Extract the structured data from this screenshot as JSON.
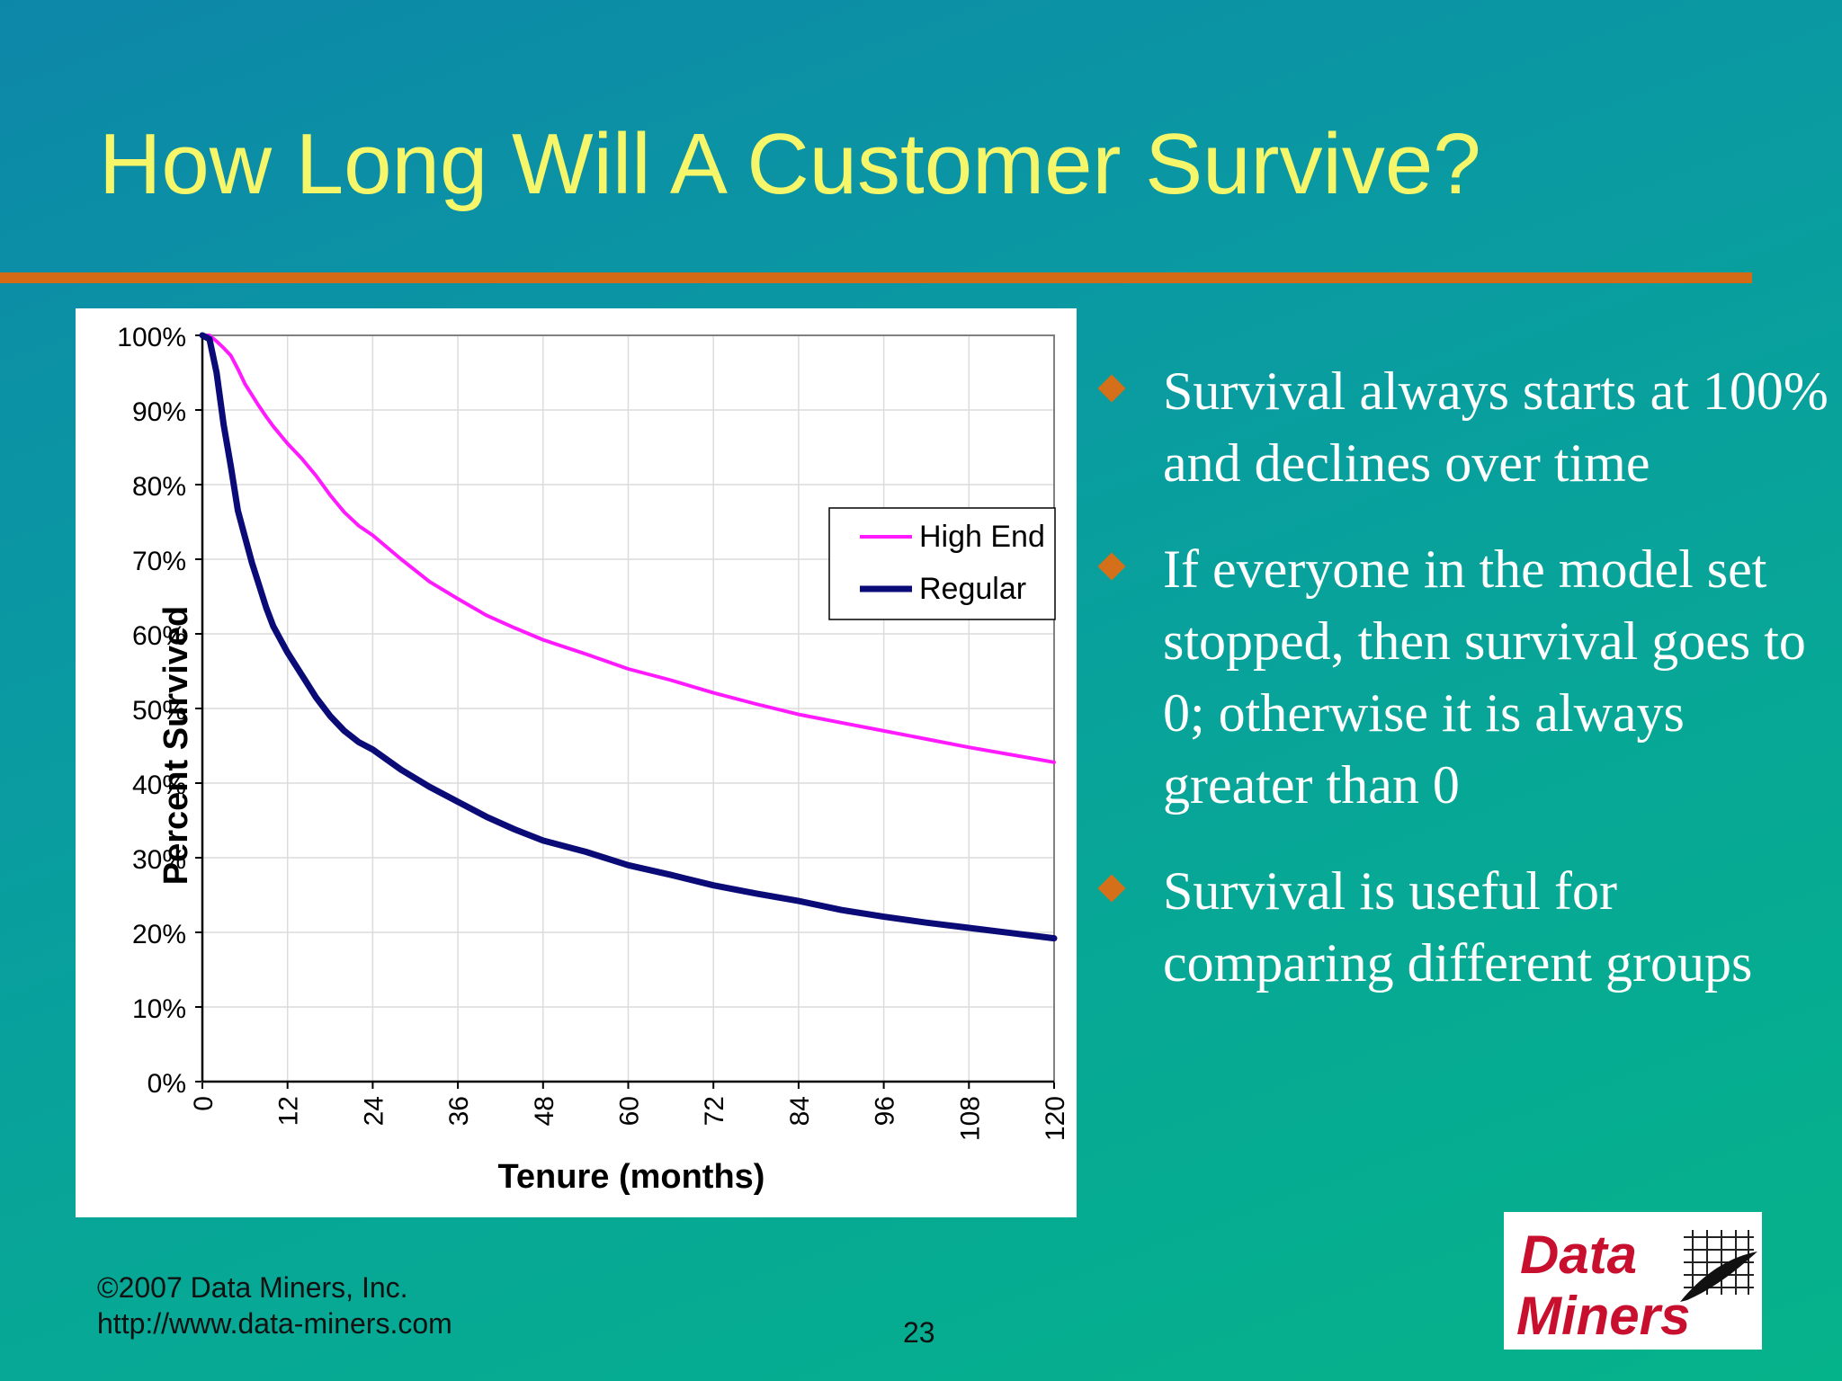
{
  "slide": {
    "title": "How Long Will A Customer Survive?",
    "bullets": [
      "Survival always starts at 100% and declines over time",
      "If everyone in the model set stopped, then survival goes to 0; otherwise it is always greater than 0",
      "Survival is useful for comparing different groups"
    ],
    "footer_line1": "©2007 Data Miners, Inc.",
    "footer_line2": "http://www.data-miners.com",
    "page_number": "23",
    "logo": {
      "word1": "Data",
      "word2": "Miners"
    }
  },
  "colors": {
    "title": "#f6f66a",
    "rule": "#d46a16",
    "bullet_marker": "#d4701a",
    "high_end": "#ff1aff",
    "regular": "#0b0b78",
    "logo_text": "#c8102e"
  },
  "icons": {
    "bullet": "orange-diamond-icon",
    "logo": "quill-pen-grid-icon"
  },
  "chart_data": {
    "type": "line",
    "xlabel": "Tenure (months)",
    "ylabel": "Percent Survived",
    "xlim": [
      0,
      120
    ],
    "ylim": [
      0,
      100
    ],
    "x_ticks": [
      "0",
      "12",
      "24",
      "36",
      "48",
      "60",
      "72",
      "84",
      "96",
      "108",
      "120"
    ],
    "y_ticks": [
      "0%",
      "10%",
      "20%",
      "30%",
      "40%",
      "50%",
      "60%",
      "70%",
      "80%",
      "90%",
      "100%"
    ],
    "grid": true,
    "legend_position": "right",
    "series": [
      {
        "name": "High End",
        "x": [
          0,
          1,
          2,
          3,
          4,
          5,
          6,
          7,
          8,
          9,
          10,
          12,
          14,
          16,
          18,
          20,
          22,
          24,
          28,
          32,
          36,
          40,
          44,
          48,
          54,
          60,
          66,
          72,
          78,
          84,
          90,
          96,
          102,
          108,
          114,
          120
        ],
        "y": [
          100,
          100,
          99.2,
          98.3,
          97.3,
          95.5,
          93.5,
          92,
          90.5,
          89.1,
          87.8,
          85.5,
          83.5,
          81.2,
          78.6,
          76.3,
          74.5,
          73.2,
          70,
          67,
          64.7,
          62.5,
          60.8,
          59.2,
          57.3,
          55.3,
          53.8,
          52.1,
          50.6,
          49.2,
          48.1,
          47,
          45.9,
          44.8,
          43.8,
          42.8
        ]
      },
      {
        "name": "Regular",
        "x": [
          0,
          1,
          2,
          3,
          4,
          5,
          6,
          7,
          8,
          9,
          10,
          12,
          14,
          16,
          18,
          20,
          22,
          24,
          28,
          32,
          36,
          40,
          44,
          48,
          54,
          60,
          66,
          72,
          78,
          84,
          90,
          96,
          102,
          108,
          114,
          120
        ],
        "y": [
          100,
          99.5,
          95,
          88,
          82.5,
          76.5,
          73,
          69.5,
          66.5,
          63.5,
          61,
          57.5,
          54.5,
          51.5,
          49,
          47,
          45.5,
          44.5,
          41.8,
          39.5,
          37.5,
          35.5,
          33.8,
          32.3,
          30.8,
          29,
          27.7,
          26.3,
          25.2,
          24.2,
          23,
          22.1,
          21.3,
          20.6,
          19.9,
          19.2
        ]
      }
    ]
  }
}
